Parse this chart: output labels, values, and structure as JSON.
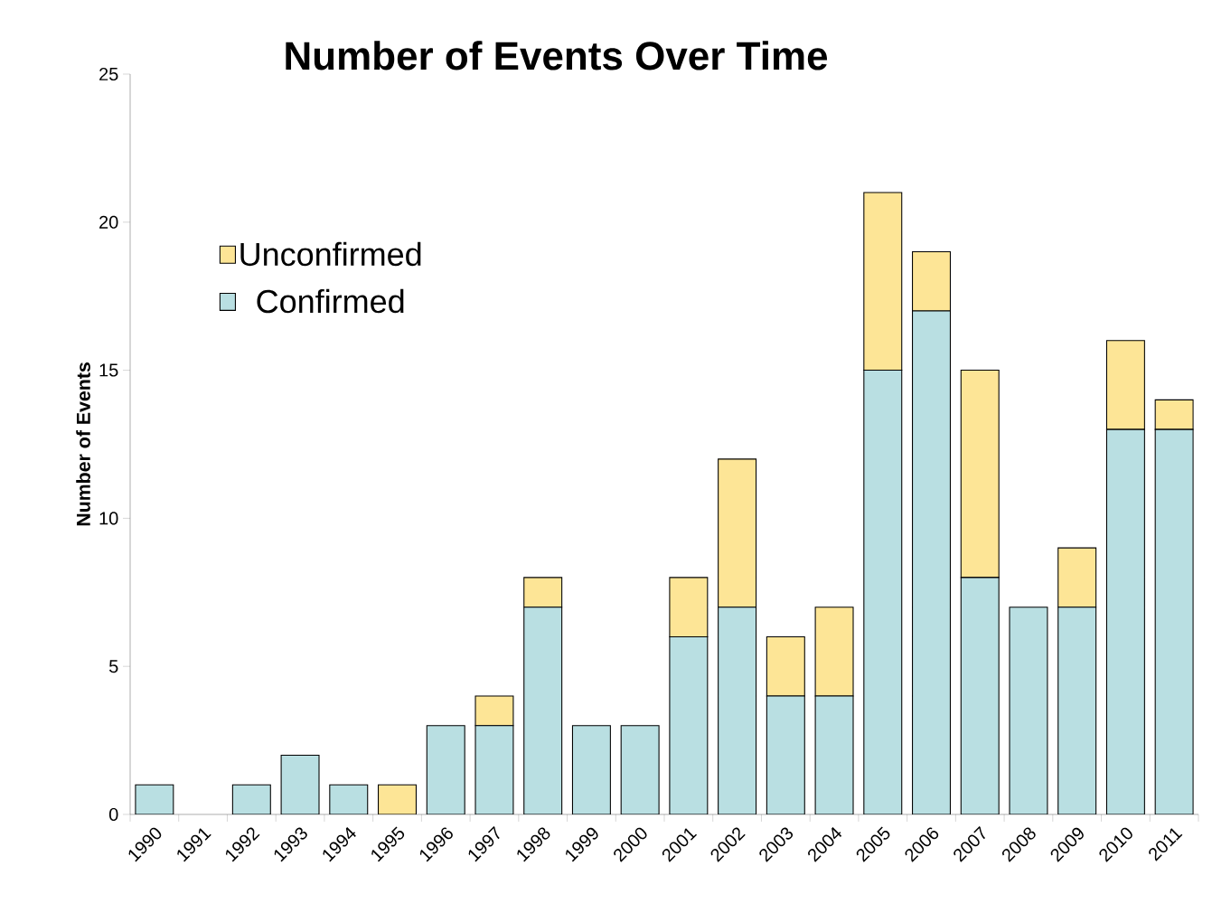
{
  "chart_data": {
    "type": "bar",
    "title": "Number of Events Over Time",
    "ylabel": "Number of Events",
    "categories": [
      "1990",
      "1991",
      "1992",
      "1993",
      "1994",
      "1995",
      "1996",
      "1997",
      "1998",
      "1999",
      "2000",
      "2001",
      "2002",
      "2003",
      "2004",
      "2005",
      "2006",
      "2007",
      "2008",
      "2009",
      "2010",
      "2011"
    ],
    "series": [
      {
        "name": "Confirmed",
        "color": "#b9dfe2",
        "values": [
          1,
          0,
          1,
          2,
          1,
          0,
          3,
          3,
          7,
          3,
          3,
          6,
          7,
          4,
          4,
          15,
          17,
          8,
          7,
          7,
          13,
          13
        ]
      },
      {
        "name": "Unconfirmed",
        "color": "#fde596",
        "values": [
          0,
          0,
          0,
          0,
          0,
          1,
          0,
          1,
          1,
          0,
          0,
          2,
          5,
          2,
          3,
          6,
          2,
          7,
          0,
          2,
          3,
          1
        ]
      }
    ],
    "stacked": true,
    "ylim": [
      0,
      25
    ],
    "yticks": [
      0,
      5,
      10,
      15,
      20,
      25
    ],
    "grid": false,
    "legend": "top left"
  }
}
